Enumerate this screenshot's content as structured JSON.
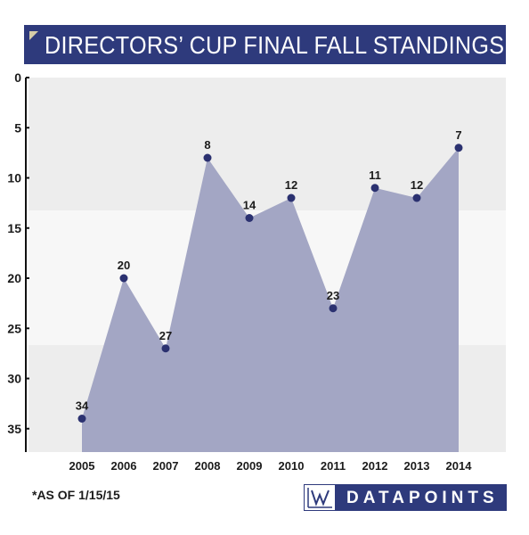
{
  "title": "DIRECTORS’ CUP FINAL FALL STANDINGS",
  "footnote": "*AS OF 1/15/15",
  "logo": {
    "text": "DATAPOINTS",
    "icon": "chart-w-icon"
  },
  "colors": {
    "title_bar": "#2e3a7c",
    "area_fill": "#a3a6c4",
    "point": "#2b3170",
    "band_dark": "#ededed",
    "band_light": "#f7f7f7"
  },
  "chart_data": {
    "type": "area",
    "title": "DIRECTORS’ CUP FINAL FALL STANDINGS",
    "xlabel": "",
    "ylabel": "",
    "inverted_y": true,
    "ylim": [
      0,
      38
    ],
    "yticks": [
      0,
      5,
      10,
      15,
      20,
      25,
      30,
      35
    ],
    "x": [
      "2005",
      "2006",
      "2007",
      "2008",
      "2009",
      "2010",
      "2011",
      "2012",
      "2013",
      "2014"
    ],
    "values": [
      34,
      20,
      27,
      8,
      14,
      12,
      23,
      11,
      12,
      7
    ],
    "data_labels": [
      "34",
      "20",
      "27",
      "8",
      "14",
      "12",
      "23",
      "11",
      "12",
      "7"
    ],
    "grid": false,
    "legend": "none"
  }
}
